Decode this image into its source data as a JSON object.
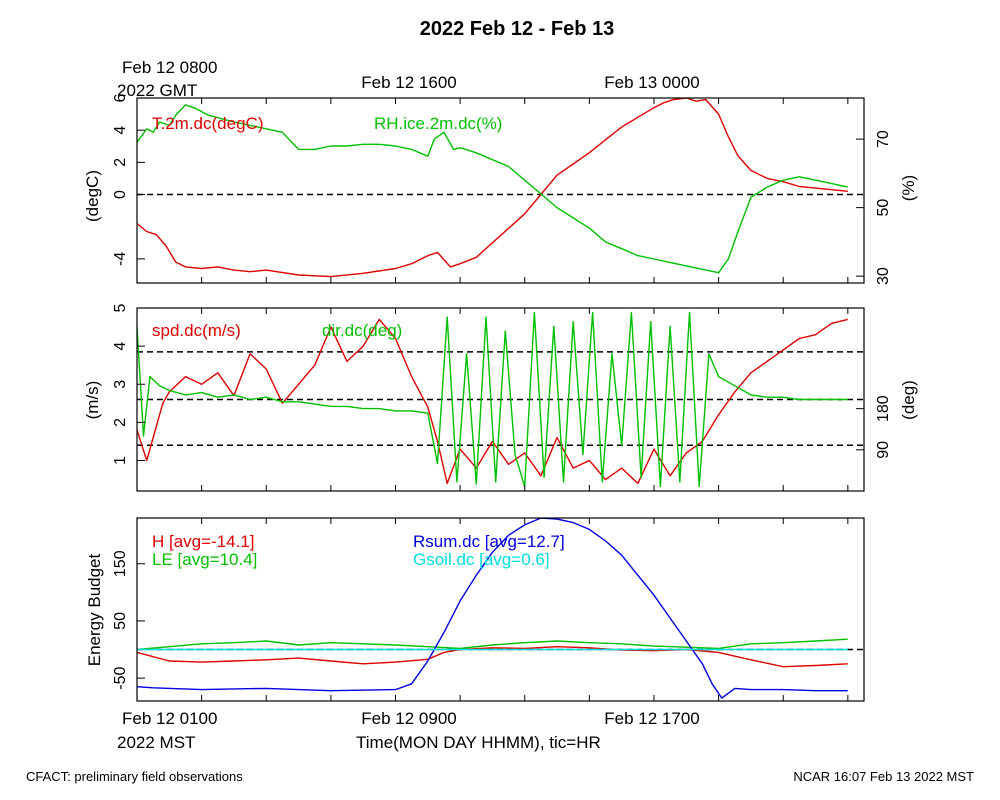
{
  "title": "2022 Feb 12 - Feb 13",
  "footer": {
    "left": "CFACT: preliminary field observations",
    "right": "NCAR 16:07 Feb 13 2022 MST"
  },
  "top_axis": {
    "labels": [
      "Feb 12 0800",
      "Feb 12 1600",
      "Feb 13 0000"
    ],
    "zone_label": "2022 GMT"
  },
  "bottom_axis": {
    "labels": [
      "Feb 12 0100",
      "Feb 12 0900",
      "Feb 12 1700"
    ],
    "zone_label": "2022 MST",
    "title": "Time(MON DAY HHMM), tic=HR"
  },
  "colors": {
    "red": "#e00000",
    "green": "#00c000",
    "blue": "#0000e0",
    "cyan": "#00e0e0",
    "black": "#000000"
  },
  "chart_data": [
    {
      "type": "line",
      "panel": "temperature-rh",
      "x_unit": "hours since Feb 12 0100 MST",
      "xlim": [
        0,
        22.5
      ],
      "left_axis": {
        "label": "(degC)",
        "ylim": [
          -5.5,
          6
        ],
        "ticks": [
          -4,
          0,
          2,
          4,
          6
        ]
      },
      "right_axis": {
        "label": "(%)",
        "ylim": [
          28,
          82
        ],
        "ticks": [
          30,
          50,
          70
        ]
      },
      "reference_lines": [
        {
          "axis": "left",
          "y": 0
        }
      ],
      "series": [
        {
          "name": "T.2m.dc(degC)",
          "axis": "left",
          "color": "#e00000",
          "x": [
            0,
            0.3,
            0.6,
            0.9,
            1.2,
            1.5,
            2,
            2.5,
            3,
            3.5,
            4,
            5,
            6,
            7,
            8,
            8.5,
            9,
            9.3,
            9.7,
            10,
            10.5,
            11,
            11.5,
            12,
            12.5,
            13,
            13.5,
            14,
            14.5,
            15,
            15.5,
            16,
            16.3,
            16.6,
            17,
            17.3,
            17.6,
            18,
            18.3,
            18.6,
            19,
            19.5,
            20,
            20.5,
            21,
            21.5,
            22
          ],
          "y": [
            -1.8,
            -2.3,
            -2.5,
            -3.2,
            -4.2,
            -4.5,
            -4.6,
            -4.5,
            -4.7,
            -4.8,
            -4.7,
            -5.0,
            -5.1,
            -4.9,
            -4.6,
            -4.3,
            -3.8,
            -3.6,
            -4.5,
            -4.3,
            -3.9,
            -3.0,
            -2.1,
            -1.2,
            0.0,
            1.2,
            1.9,
            2.6,
            3.4,
            4.2,
            4.8,
            5.4,
            5.7,
            5.9,
            6.0,
            5.8,
            5.9,
            5.0,
            3.6,
            2.4,
            1.5,
            1.0,
            0.8,
            0.5,
            0.4,
            0.3,
            0.2
          ]
        },
        {
          "name": "RH.ice.2m.dc(%)",
          "axis": "right",
          "color": "#00c000",
          "x": [
            0,
            0.3,
            0.5,
            0.7,
            1,
            1.2,
            1.5,
            1.8,
            2.2,
            2.6,
            3,
            3.5,
            4,
            4.5,
            5,
            5.5,
            6,
            6.5,
            7,
            7.5,
            8,
            8.5,
            9,
            9.2,
            9.5,
            9.8,
            10,
            10.5,
            11,
            11.5,
            12,
            12.5,
            13,
            13.5,
            14,
            14.5,
            15,
            15.5,
            16,
            16.5,
            17,
            17.5,
            18,
            18.3,
            18.6,
            19,
            19.5,
            20,
            20.5,
            21,
            21.5,
            22
          ],
          "y": [
            69,
            73,
            72,
            75,
            74,
            77,
            80,
            79,
            77,
            76,
            75,
            74,
            73,
            72,
            67,
            67,
            68,
            68,
            68.5,
            68.5,
            68,
            67,
            65,
            70,
            72,
            67,
            67.5,
            66,
            64,
            62,
            58,
            54,
            50,
            47,
            44,
            40,
            38,
            36,
            35,
            34,
            33,
            32,
            31,
            35,
            43,
            53,
            56,
            58,
            59,
            58,
            57,
            56
          ]
        }
      ]
    },
    {
      "type": "line",
      "panel": "wind",
      "x_unit": "hours since Feb 12 0100 MST",
      "xlim": [
        0,
        22.5
      ],
      "left_axis": {
        "label": "(m/s)",
        "ylim": [
          0.2,
          5
        ],
        "ticks": [
          1,
          2,
          3,
          4,
          5
        ]
      },
      "right_axis": {
        "label": "(deg)",
        "ylim": [
          0,
          400
        ],
        "ticks": [
          90,
          180
        ]
      },
      "reference_lines": [
        {
          "axis": "left",
          "y": 1.4
        },
        {
          "axis": "left",
          "y": 2.6
        },
        {
          "axis": "left",
          "y": 3.85
        }
      ],
      "series": [
        {
          "name": "spd.dc(m/s)",
          "axis": "left",
          "color": "#e00000",
          "x": [
            0,
            0.3,
            0.5,
            0.8,
            1,
            1.5,
            2,
            2.5,
            3,
            3.5,
            4,
            4.5,
            5,
            5.5,
            6,
            6.5,
            7,
            7.5,
            8,
            8.5,
            9,
            9.3,
            9.6,
            10,
            10.5,
            11,
            11.5,
            12,
            12.5,
            13,
            13.5,
            14,
            14.5,
            15,
            15.5,
            16,
            16.5,
            17,
            17.5,
            18,
            18.5,
            19,
            19.5,
            20,
            20.5,
            21,
            21.5,
            22
          ],
          "y": [
            1.8,
            1.0,
            1.6,
            2.5,
            2.8,
            3.2,
            3.0,
            3.3,
            2.7,
            3.8,
            3.4,
            2.5,
            3.0,
            3.5,
            4.5,
            3.6,
            4.0,
            4.7,
            4.2,
            3.2,
            2.4,
            1.5,
            0.4,
            1.3,
            0.8,
            1.5,
            0.9,
            1.2,
            0.6,
            1.6,
            0.8,
            1.0,
            0.5,
            0.8,
            0.4,
            1.3,
            0.6,
            1.2,
            1.5,
            2.2,
            2.8,
            3.3,
            3.6,
            3.9,
            4.2,
            4.3,
            4.6,
            4.7
          ]
        },
        {
          "name": "dir.dc(deg)",
          "axis": "right",
          "color": "#00c000",
          "x": [
            0,
            0.2,
            0.4,
            0.7,
            1,
            1.5,
            2,
            2.5,
            3,
            3.5,
            4,
            4.5,
            5,
            5.5,
            6,
            6.5,
            7,
            7.5,
            8,
            8.5,
            9,
            9.3,
            9.6,
            9.9,
            10.2,
            10.5,
            10.8,
            11.1,
            11.4,
            11.7,
            12,
            12.3,
            12.6,
            12.9,
            13.2,
            13.5,
            13.8,
            14.1,
            14.4,
            14.7,
            15,
            15.3,
            15.6,
            15.9,
            16.2,
            16.5,
            16.8,
            17.1,
            17.4,
            17.7,
            18,
            18.5,
            19,
            19.5,
            20,
            20.5,
            21,
            21.5,
            22
          ],
          "y": [
            360,
            120,
            250,
            230,
            220,
            210,
            215,
            205,
            210,
            200,
            205,
            195,
            195,
            190,
            185,
            185,
            180,
            180,
            175,
            175,
            170,
            60,
            380,
            20,
            300,
            15,
            380,
            20,
            350,
            80,
            10,
            390,
            30,
            360,
            20,
            370,
            80,
            390,
            20,
            300,
            100,
            390,
            30,
            370,
            10,
            360,
            20,
            390,
            10,
            300,
            250,
            230,
            210,
            205,
            205,
            200,
            200,
            200,
            200
          ]
        }
      ]
    },
    {
      "type": "line",
      "panel": "energy-budget",
      "x_unit": "hours since Feb 12 0100 MST",
      "xlim": [
        0,
        22.5
      ],
      "left_axis": {
        "label": "Energy Budget",
        "ylim": [
          -90,
          230
        ],
        "ticks": [
          -50,
          50,
          150
        ]
      },
      "reference_lines": [
        {
          "axis": "left",
          "y": 0
        }
      ],
      "series": [
        {
          "name": "H",
          "legend": "H [avg=-14.1]",
          "color": "#e00000",
          "x": [
            0,
            1,
            2,
            3,
            4,
            5,
            6,
            7,
            8,
            9,
            9.5,
            10,
            11,
            12,
            13,
            14,
            15,
            16,
            17,
            18,
            19,
            20,
            21,
            22
          ],
          "y": [
            -5,
            -20,
            -22,
            -20,
            -18,
            -15,
            -20,
            -25,
            -22,
            -17,
            -5,
            0,
            3,
            2,
            5,
            3,
            -1,
            -2,
            0,
            -5,
            -18,
            -30,
            -28,
            -25
          ]
        },
        {
          "name": "LE",
          "legend": "LE [avg=10.4]",
          "color": "#00c000",
          "x": [
            0,
            1,
            2,
            3,
            4,
            5,
            6,
            7,
            8,
            9,
            10,
            11,
            12,
            13,
            14,
            15,
            16,
            17,
            18,
            19,
            20,
            21,
            22
          ],
          "y": [
            0,
            5,
            10,
            12,
            15,
            8,
            12,
            10,
            8,
            5,
            2,
            8,
            12,
            15,
            12,
            10,
            6,
            4,
            2,
            10,
            12,
            15,
            18
          ]
        },
        {
          "name": "Rsum.dc",
          "legend": "Rsum.dc [avg=12.7]",
          "color": "#0000e0",
          "x": [
            0,
            0.5,
            2,
            4,
            6,
            8,
            8.5,
            9,
            9.5,
            10,
            10.5,
            11,
            11.5,
            12,
            12.5,
            13,
            13.5,
            14,
            14.5,
            15,
            15.5,
            16,
            16.5,
            17,
            17.5,
            17.8,
            18.1,
            18.5,
            19,
            20,
            21,
            22
          ],
          "y": [
            -65,
            -67,
            -70,
            -68,
            -72,
            -70,
            -60,
            -20,
            30,
            85,
            130,
            170,
            200,
            218,
            230,
            228,
            222,
            210,
            190,
            165,
            130,
            95,
            55,
            15,
            -25,
            -60,
            -85,
            -68,
            -70,
            -70,
            -72,
            -72
          ]
        },
        {
          "name": "Gsoil.dc",
          "legend": "Gsoil.dc [avg=0.6]",
          "color": "#00e0e0",
          "x": [
            0,
            22
          ],
          "y": [
            0,
            0
          ]
        }
      ]
    }
  ]
}
